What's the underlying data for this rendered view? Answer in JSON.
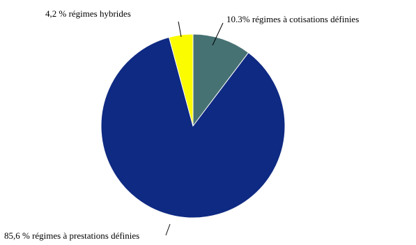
{
  "chart_data": {
    "type": "pie",
    "title": "",
    "slices": [
      {
        "label": "10.3% régimes à cotisations définies",
        "value": 10.3,
        "color": "#477273"
      },
      {
        "label": "85,6 % régimes à prestations définies",
        "value": 85.6,
        "color": "#0f2a82"
      },
      {
        "label": "4,2 % régimes hybrides",
        "value": 4.2,
        "color": "#fcfc00"
      }
    ],
    "dark_segment_color": "#0f2a82",
    "edge_color": "#ffffff",
    "leader_line_color": "#000000"
  }
}
